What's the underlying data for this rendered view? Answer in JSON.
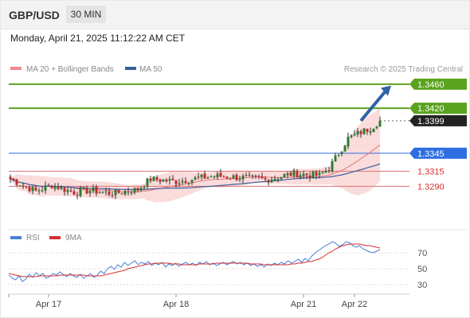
{
  "header": {
    "symbol": "GBP/USD",
    "timeframe": "30 MIN",
    "datetime": "Monday, April 21, 2025 11:12:22 AM CET"
  },
  "colors": {
    "bull": "#2e7d32",
    "bear": "#c62828",
    "ma20": "#e57373",
    "ma50": "#3a5f9e",
    "band": "#f6c4c4",
    "resistance": "#5aa31c",
    "pivot": "#2d6ee0",
    "support": "#e07070",
    "arrow": "#2f63a8",
    "rsi": "#4a7fd4",
    "rsi_ma": "#d32f2f"
  },
  "chart_data": [
    {
      "type": "line",
      "panel": "price",
      "legend": [
        {
          "name": "MA 20 + Bollinger Bands",
          "color": "#f08a8a"
        },
        {
          "name": "MA 50",
          "color": "#3a5f9e"
        }
      ],
      "credit": "Research © 2025 Trading Central",
      "ylim": [
        1.3219,
        1.3473
      ],
      "x_ticks": [
        {
          "label": "Apr 17",
          "index": 12
        },
        {
          "label": "Apr 18",
          "index": 52
        },
        {
          "label": "Apr 21",
          "index": 92
        },
        {
          "label": "Apr 22",
          "index": 108
        }
      ],
      "levels": [
        {
          "label": "1.3460",
          "value": 1.346,
          "kind": "resistance"
        },
        {
          "label": "1.3420",
          "value": 1.342,
          "kind": "resistance"
        },
        {
          "label": "1.3399",
          "value": 1.3399,
          "kind": "last"
        },
        {
          "label": "1.3345",
          "value": 1.3345,
          "kind": "pivot"
        },
        {
          "label": "1.3315",
          "value": 1.3315,
          "kind": "support"
        },
        {
          "label": "1.3290",
          "value": 1.329,
          "kind": "support"
        }
      ],
      "target_arrow": {
        "from_index": 110,
        "from": 1.3399,
        "to_index": 119,
        "to": 1.3455
      }
    },
    {
      "type": "line",
      "panel": "rsi",
      "legend": [
        {
          "name": "RSI",
          "color": "#4a7fd4"
        },
        {
          "name": "9MA",
          "color": "#d32f2f"
        }
      ],
      "ylim": [
        20,
        80
      ],
      "y_ticks": [
        70,
        50,
        30
      ],
      "rsi": [
        42,
        38,
        36,
        41,
        34,
        37,
        43,
        39,
        45,
        41,
        44,
        38,
        40,
        44,
        42,
        46,
        43,
        40,
        44,
        41,
        39,
        43,
        38,
        41,
        44,
        39,
        42,
        47,
        44,
        50,
        53,
        49,
        55,
        52,
        58,
        54,
        57,
        60,
        55,
        58,
        56,
        59,
        54,
        57,
        55,
        58,
        52,
        56,
        54,
        57,
        53,
        56,
        58,
        55,
        57,
        54,
        58,
        56,
        59,
        55,
        57,
        54,
        56,
        58,
        55,
        57,
        59,
        56,
        58,
        55,
        57,
        54,
        56,
        53,
        55,
        52,
        56,
        54,
        57,
        55,
        58,
        56,
        60,
        57,
        59,
        62,
        58,
        63,
        60,
        66,
        70,
        73,
        76,
        79,
        81,
        84,
        82,
        78,
        80,
        84,
        83,
        79,
        77,
        79,
        75,
        73,
        71,
        70,
        72,
        74
      ],
      "ma9": [
        44,
        43,
        42,
        41,
        40,
        40,
        40,
        40,
        40,
        41,
        41,
        41,
        41,
        41,
        41,
        42,
        42,
        42,
        42,
        42,
        42,
        42,
        42,
        41,
        41,
        41,
        41,
        41,
        42,
        43,
        44,
        45,
        46,
        47,
        48,
        50,
        51,
        52,
        53,
        54,
        55,
        56,
        56,
        57,
        57,
        57,
        57,
        57,
        56,
        56,
        56,
        55,
        55,
        55,
        55,
        55,
        56,
        56,
        56,
        56,
        56,
        57,
        57,
        57,
        57,
        57,
        57,
        57,
        57,
        57,
        57,
        56,
        56,
        56,
        56,
        55,
        55,
        55,
        55,
        55,
        55,
        55,
        55,
        56,
        56,
        57,
        57,
        58,
        59,
        59,
        61,
        62,
        64,
        67,
        70,
        72,
        75,
        77,
        79,
        80,
        81,
        81,
        81,
        81,
        80,
        79,
        79,
        78,
        77,
        76
      ]
    }
  ]
}
